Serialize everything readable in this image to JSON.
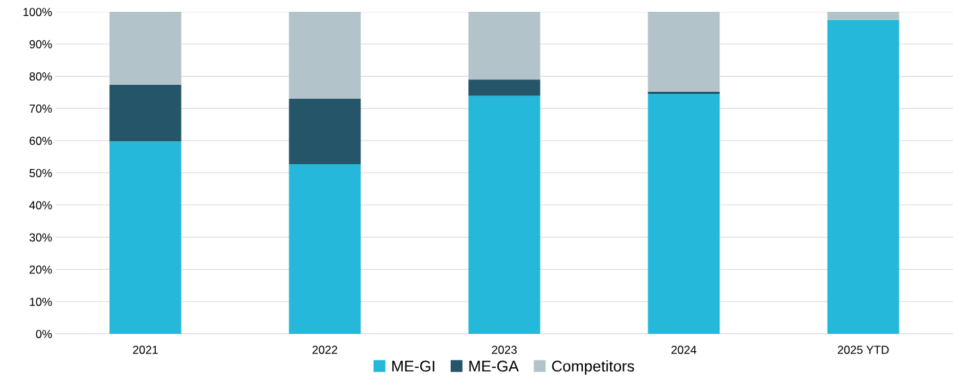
{
  "chart_data": {
    "type": "bar",
    "stacked": true,
    "categories": [
      "2021",
      "2022",
      "2023",
      "2024",
      "2025 YTD"
    ],
    "series": [
      {
        "name": "ME-GI",
        "color": "#26b8da",
        "values": [
          59.8,
          52.7,
          73.9,
          74.5,
          97.4
        ]
      },
      {
        "name": "ME-GA",
        "color": "#245569",
        "values": [
          17.5,
          20.3,
          5.1,
          0.7,
          0
        ]
      },
      {
        "name": "Competitors",
        "color": "#b3c3ca",
        "values": [
          22.7,
          27.0,
          21.0,
          24.8,
          2.6
        ]
      }
    ],
    "ylim": [
      0,
      100
    ],
    "yticks": [
      {
        "value": 0,
        "label": "0%"
      },
      {
        "value": 10,
        "label": "10%"
      },
      {
        "value": 20,
        "label": "20%"
      },
      {
        "value": 30,
        "label": "30%"
      },
      {
        "value": 40,
        "label": "40%"
      },
      {
        "value": 50,
        "label": "50%"
      },
      {
        "value": 60,
        "label": "60%"
      },
      {
        "value": 70,
        "label": "70%"
      },
      {
        "value": 80,
        "label": "80%"
      },
      {
        "value": 90,
        "label": "90%"
      },
      {
        "value": 100,
        "label": "100%"
      }
    ],
    "grid": "y",
    "legend": "bottom"
  }
}
